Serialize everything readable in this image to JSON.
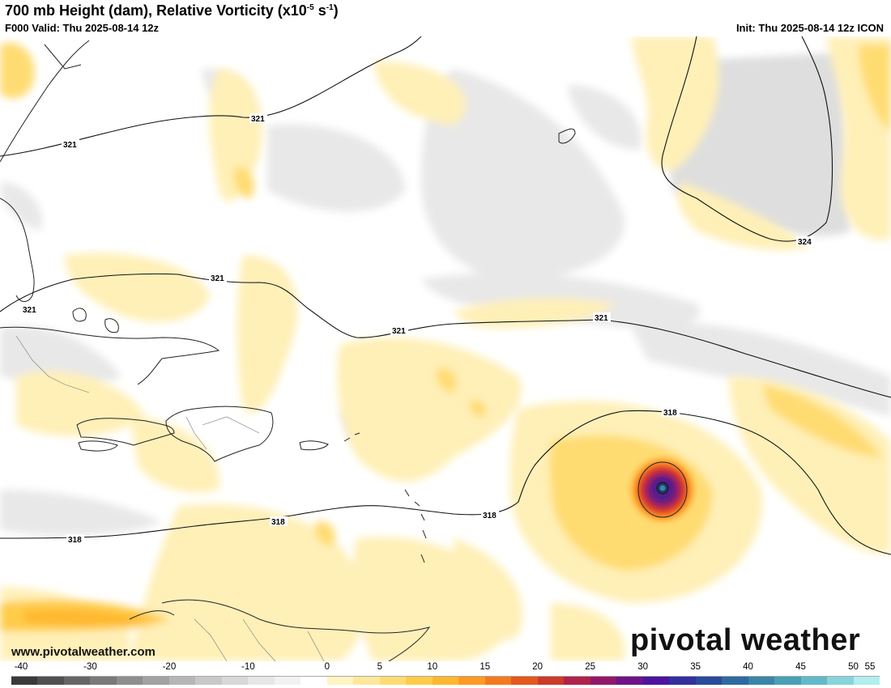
{
  "header": {
    "title_main": "700 mb Height (dam), Relative Vorticity (x10",
    "title_exp1": "-5",
    "title_mid": " s",
    "title_exp2": "-1",
    "title_end": ")",
    "valid": "F000 Valid: Thu 2025-08-14 12z",
    "init": "Init: Thu 2025-08-14 12z ICON"
  },
  "map": {
    "contours": [
      {
        "label": "321"
      },
      {
        "label": "321"
      },
      {
        "label": "321"
      },
      {
        "label": "321"
      },
      {
        "label": "321"
      },
      {
        "label": "321"
      },
      {
        "label": "324"
      },
      {
        "label": "318"
      },
      {
        "label": "318"
      },
      {
        "label": "318"
      },
      {
        "label": "318"
      }
    ]
  },
  "watermark": {
    "url": "www.pivotalweather.com",
    "brand": "pivotal weather"
  },
  "colorbar": {
    "ticks": [
      "-40",
      "-30",
      "-20",
      "-10",
      "0",
      "5",
      "10",
      "15",
      "20",
      "25",
      "30",
      "35",
      "40",
      "45",
      "50",
      "55"
    ],
    "colors": [
      "#3a3a3a",
      "#505050",
      "#666666",
      "#7a7a7a",
      "#8e8e8e",
      "#a2a2a2",
      "#b6b6b6",
      "#c8c8c8",
      "#d8d8d8",
      "#e6e6e6",
      "#f2f2f2",
      "#ffffff",
      "#fff4c2",
      "#ffe89a",
      "#ffdc72",
      "#ffcc4a",
      "#ffb72e",
      "#ff9a22",
      "#f57a1e",
      "#e4581e",
      "#cc3a2a",
      "#b0234a",
      "#92186a",
      "#6e1488",
      "#4c14a0",
      "#33309e",
      "#2a4a9a",
      "#2e6aa0",
      "#3a86a8",
      "#4aa0b6",
      "#62bac8",
      "#86d4dc",
      "#b0eef0"
    ]
  }
}
